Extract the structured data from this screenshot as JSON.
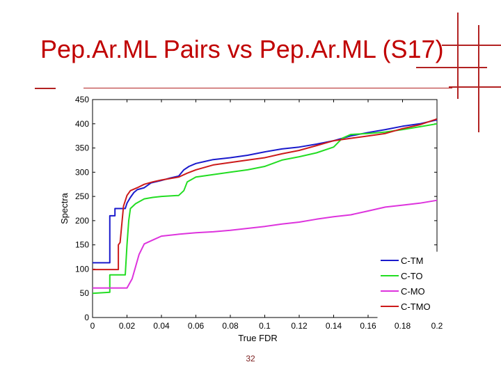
{
  "slide": {
    "title": "Pep.Ar.ML Pairs vs Pep.Ar.ML (S17)",
    "page_number": "32",
    "accent_color": "#c00000"
  },
  "chart_data": {
    "type": "line",
    "xlabel": "True FDR",
    "ylabel": "Spectra",
    "xlim": [
      0,
      0.2
    ],
    "ylim": [
      0,
      450
    ],
    "x_ticks": [
      "0",
      "0.02",
      "0.04",
      "0.06",
      "0.08",
      "0.1",
      "0.12",
      "0.14",
      "0.16",
      "0.18",
      "0.2"
    ],
    "y_ticks": [
      "0",
      "50",
      "100",
      "150",
      "200",
      "250",
      "300",
      "350",
      "400",
      "450"
    ],
    "grid": false,
    "legend_position": "bottom-right",
    "series": [
      {
        "name": "C-TM",
        "color": "#1a1acc",
        "points": [
          [
            0,
            113
          ],
          [
            0.01,
            113
          ],
          [
            0.01,
            210
          ],
          [
            0.013,
            210
          ],
          [
            0.013,
            225
          ],
          [
            0.019,
            225
          ],
          [
            0.02,
            236
          ],
          [
            0.022,
            248
          ],
          [
            0.024,
            258
          ],
          [
            0.026,
            264
          ],
          [
            0.03,
            268
          ],
          [
            0.034,
            278
          ],
          [
            0.04,
            283
          ],
          [
            0.045,
            288
          ],
          [
            0.05,
            292
          ],
          [
            0.053,
            305
          ],
          [
            0.056,
            312
          ],
          [
            0.06,
            318
          ],
          [
            0.065,
            322
          ],
          [
            0.07,
            326
          ],
          [
            0.08,
            330
          ],
          [
            0.09,
            335
          ],
          [
            0.1,
            342
          ],
          [
            0.11,
            348
          ],
          [
            0.12,
            352
          ],
          [
            0.13,
            358
          ],
          [
            0.14,
            365
          ],
          [
            0.15,
            375
          ],
          [
            0.16,
            382
          ],
          [
            0.17,
            388
          ],
          [
            0.18,
            395
          ],
          [
            0.19,
            400
          ],
          [
            0.2,
            408
          ]
        ]
      },
      {
        "name": "C-TO",
        "color": "#22dd22",
        "points": [
          [
            0,
            50
          ],
          [
            0.01,
            52
          ],
          [
            0.01,
            88
          ],
          [
            0.019,
            88
          ],
          [
            0.02,
            150
          ],
          [
            0.021,
            200
          ],
          [
            0.022,
            225
          ],
          [
            0.025,
            235
          ],
          [
            0.03,
            245
          ],
          [
            0.035,
            248
          ],
          [
            0.04,
            250
          ],
          [
            0.05,
            252
          ],
          [
            0.053,
            262
          ],
          [
            0.055,
            280
          ],
          [
            0.06,
            290
          ],
          [
            0.07,
            295
          ],
          [
            0.08,
            300
          ],
          [
            0.09,
            305
          ],
          [
            0.1,
            312
          ],
          [
            0.11,
            325
          ],
          [
            0.12,
            332
          ],
          [
            0.13,
            340
          ],
          [
            0.14,
            352
          ],
          [
            0.145,
            370
          ],
          [
            0.15,
            378
          ],
          [
            0.16,
            380
          ],
          [
            0.17,
            383
          ],
          [
            0.18,
            388
          ],
          [
            0.19,
            394
          ],
          [
            0.2,
            400
          ]
        ]
      },
      {
        "name": "C-MO",
        "color": "#dd33dd",
        "points": [
          [
            0,
            61
          ],
          [
            0.02,
            61
          ],
          [
            0.023,
            80
          ],
          [
            0.027,
            130
          ],
          [
            0.03,
            152
          ],
          [
            0.035,
            160
          ],
          [
            0.04,
            168
          ],
          [
            0.05,
            172
          ],
          [
            0.06,
            175
          ],
          [
            0.07,
            177
          ],
          [
            0.08,
            180
          ],
          [
            0.09,
            184
          ],
          [
            0.1,
            188
          ],
          [
            0.11,
            193
          ],
          [
            0.12,
            197
          ],
          [
            0.13,
            203
          ],
          [
            0.14,
            208
          ],
          [
            0.15,
            212
          ],
          [
            0.16,
            220
          ],
          [
            0.17,
            228
          ],
          [
            0.18,
            232
          ],
          [
            0.19,
            236
          ],
          [
            0.2,
            242
          ]
        ]
      },
      {
        "name": "C-TMO",
        "color": "#cc1a1a",
        "points": [
          [
            0,
            99
          ],
          [
            0.015,
            99
          ],
          [
            0.015,
            150
          ],
          [
            0.016,
            155
          ],
          [
            0.018,
            230
          ],
          [
            0.02,
            252
          ],
          [
            0.022,
            262
          ],
          [
            0.026,
            268
          ],
          [
            0.03,
            275
          ],
          [
            0.035,
            280
          ],
          [
            0.04,
            284
          ],
          [
            0.05,
            290
          ],
          [
            0.055,
            298
          ],
          [
            0.06,
            305
          ],
          [
            0.065,
            310
          ],
          [
            0.07,
            315
          ],
          [
            0.08,
            320
          ],
          [
            0.09,
            325
          ],
          [
            0.1,
            330
          ],
          [
            0.11,
            338
          ],
          [
            0.12,
            345
          ],
          [
            0.13,
            355
          ],
          [
            0.14,
            365
          ],
          [
            0.15,
            370
          ],
          [
            0.16,
            375
          ],
          [
            0.17,
            380
          ],
          [
            0.18,
            390
          ],
          [
            0.19,
            398
          ],
          [
            0.2,
            410
          ]
        ]
      }
    ]
  }
}
